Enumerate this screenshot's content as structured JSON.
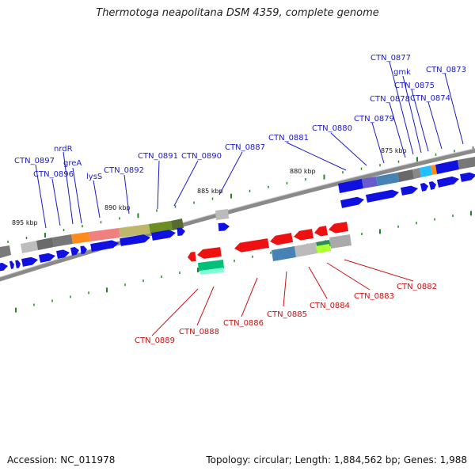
{
  "title": "Thermotoga neapolitana DSM 4359, complete genome",
  "footer": {
    "accession": "Accession: NC_011978",
    "topology": "Topology: circular; Length: 1,884,562 bp; Genes: 1,988"
  },
  "colors": {
    "forward_label": "#1a1acc",
    "reverse_label": "#cc1111",
    "forward_gene": "#1010e0",
    "reverse_gene": "#ee1111",
    "tick": "#228822",
    "backbone": "#888888"
  },
  "scale_labels": [
    "895 kbp",
    "890 kbp",
    "885 kbp",
    "880 kbp",
    "875 kbp"
  ],
  "forward_labels": [
    "CTN_0897",
    "nrdR",
    "CTN_0896",
    "greA",
    "lysS",
    "CTN_0892",
    "CTN_0891",
    "CTN_0890",
    "CTN_0887",
    "CTN_0881",
    "CTN_0880",
    "CTN_0879",
    "CTN_0878",
    "CTN_0877",
    "gmk",
    "CTN_0875",
    "CTN_0874",
    "CTN_0873"
  ],
  "reverse_labels": [
    "CTN_0889",
    "CTN_0888",
    "CTN_0886",
    "CTN_0885",
    "CTN_0884",
    "CTN_0883",
    "CTN_0882"
  ]
}
